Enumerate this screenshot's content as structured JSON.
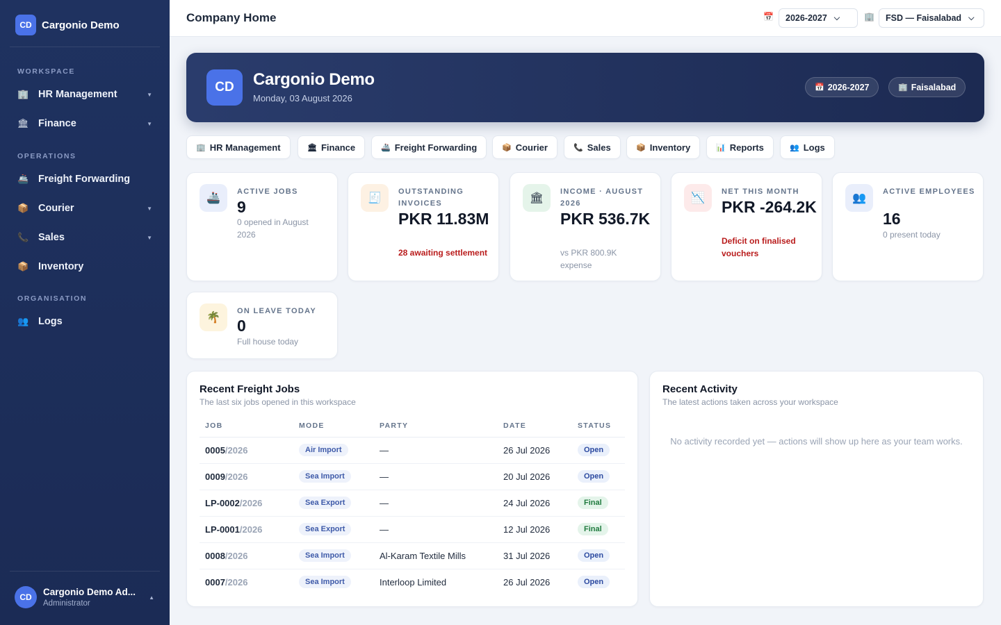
{
  "sidebar": {
    "brand": {
      "initials": "CD",
      "name": "Cargonio Demo"
    },
    "sections": {
      "workspace": "WORKSPACE",
      "operations": "OPERATIONS",
      "organisation": "ORGANISATION"
    },
    "items": {
      "hr": {
        "icon": "🏢",
        "label": "HR Management"
      },
      "finance": {
        "icon": "🏛",
        "label": "Finance"
      },
      "freight": {
        "icon": "🚢",
        "label": "Freight Forwarding"
      },
      "courier": {
        "icon": "📦",
        "label": "Courier"
      },
      "sales": {
        "icon": "📞",
        "label": "Sales"
      },
      "inventory": {
        "icon": "📦",
        "label": "Inventory"
      },
      "logs": {
        "icon": "👥",
        "label": "Logs"
      }
    },
    "user": {
      "initials": "CD",
      "name": "Cargonio Demo Ad...",
      "role": "Administrator"
    }
  },
  "topbar": {
    "title": "Company Home",
    "year_icon": "📅",
    "year": "2026-2027",
    "branch_icon": "🏢",
    "branch": "FSD — Faisalabad"
  },
  "hero": {
    "initials": "CD",
    "name": "Cargonio Demo",
    "date": "Monday, 03 August 2026",
    "year_icon": "📅",
    "year_pill": "2026-2027",
    "branch_icon": "🏢",
    "branch_pill": "Faisalabad"
  },
  "modules": {
    "hr": {
      "icon": "🏢",
      "label": "HR Management"
    },
    "finance": {
      "icon": "🏛",
      "label": "Finance"
    },
    "freight": {
      "icon": "🚢",
      "label": "Freight Forwarding"
    },
    "courier": {
      "icon": "📦",
      "label": "Courier"
    },
    "sales": {
      "icon": "📞",
      "label": "Sales"
    },
    "inventory": {
      "icon": "📦",
      "label": "Inventory"
    },
    "reports": {
      "icon": "📊",
      "label": "Reports"
    },
    "logs": {
      "icon": "👥",
      "label": "Logs"
    }
  },
  "stats": {
    "active_jobs": {
      "icon": "🚢",
      "label": "ACTIVE JOBS",
      "value": "9",
      "sub": "0 opened in August 2026"
    },
    "outstanding": {
      "icon": "🧾",
      "label": "OUTSTANDING INVOICES",
      "value": "PKR 11.83M",
      "sub": "28 awaiting settlement"
    },
    "income": {
      "icon": "🏛",
      "label": "INCOME · AUGUST 2026",
      "value": "PKR 536.7K",
      "sub": "vs PKR 800.9K expense"
    },
    "net": {
      "icon": "📉",
      "label": "NET THIS MONTH",
      "value": "PKR -264.2K",
      "sub": "Deficit on finalised vouchers"
    },
    "employees": {
      "icon": "👥",
      "label": "ACTIVE EMPLOYEES",
      "value": "16",
      "sub": "0 present today"
    },
    "leave": {
      "icon": "🌴",
      "label": "ON LEAVE TODAY",
      "value": "0",
      "sub": "Full house today"
    }
  },
  "jobs": {
    "title": "Recent Freight Jobs",
    "subtitle": "The last six jobs opened in this workspace",
    "columns": {
      "job": "JOB",
      "mode": "MODE",
      "party": "PARTY",
      "date": "DATE",
      "status": "STATUS"
    },
    "rows": [
      {
        "no": "0005",
        "yr": "/2026",
        "mode": "Air Import",
        "party": "—",
        "date": "26 Jul 2026",
        "status": "Open"
      },
      {
        "no": "0009",
        "yr": "/2026",
        "mode": "Sea Import",
        "party": "—",
        "date": "20 Jul 2026",
        "status": "Open"
      },
      {
        "no": "LP-0002",
        "yr": "/2026",
        "mode": "Sea Export",
        "party": "—",
        "date": "24 Jul 2026",
        "status": "Final"
      },
      {
        "no": "LP-0001",
        "yr": "/2026",
        "mode": "Sea Export",
        "party": "—",
        "date": "12 Jul 2026",
        "status": "Final"
      },
      {
        "no": "0008",
        "yr": "/2026",
        "mode": "Sea Import",
        "party": "Al-Karam Textile Mills",
        "date": "31 Jul 2026",
        "status": "Open"
      },
      {
        "no": "0007",
        "yr": "/2026",
        "mode": "Sea Import",
        "party": "Interloop Limited",
        "date": "26 Jul 2026",
        "status": "Open"
      }
    ]
  },
  "activity": {
    "title": "Recent Activity",
    "subtitle": "The latest actions taken across your workspace",
    "empty": "No activity recorded yet — actions will show up here as your team works."
  },
  "colors": {
    "sidebar": "#1f3260",
    "accent": "#4a72e8",
    "hero": "#23345f",
    "danger": "#b91c1c",
    "success": "#1f7a3e"
  }
}
